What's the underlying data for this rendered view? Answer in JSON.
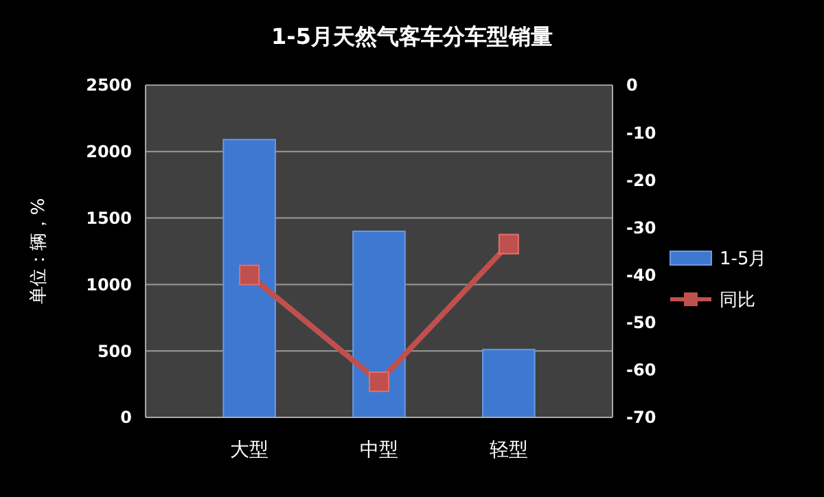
{
  "chart_data": {
    "type": "bar",
    "title": "1-5月天然气客车分车型销量",
    "ylabel": "单位：辆，%",
    "categories": [
      "大型",
      "中型",
      "轻型"
    ],
    "series": [
      {
        "name": "1-5月",
        "color": "#3f78d0",
        "values": [
          2090,
          1400,
          510
        ]
      },
      {
        "name": "同比",
        "type": "line",
        "axis": "y2",
        "color": "#c0504d",
        "values": [
          -40,
          -62.5,
          -33.5
        ],
        "marker": "square"
      }
    ],
    "ylim": [
      0,
      2500
    ],
    "yticks": [
      0,
      500,
      1000,
      1500,
      2000,
      2500
    ],
    "y2lim": [
      -70,
      0
    ],
    "y2ticks": [
      -70,
      -60,
      -50,
      -40,
      -30,
      -20,
      -10,
      0
    ],
    "grid": "y",
    "legend": "right"
  }
}
